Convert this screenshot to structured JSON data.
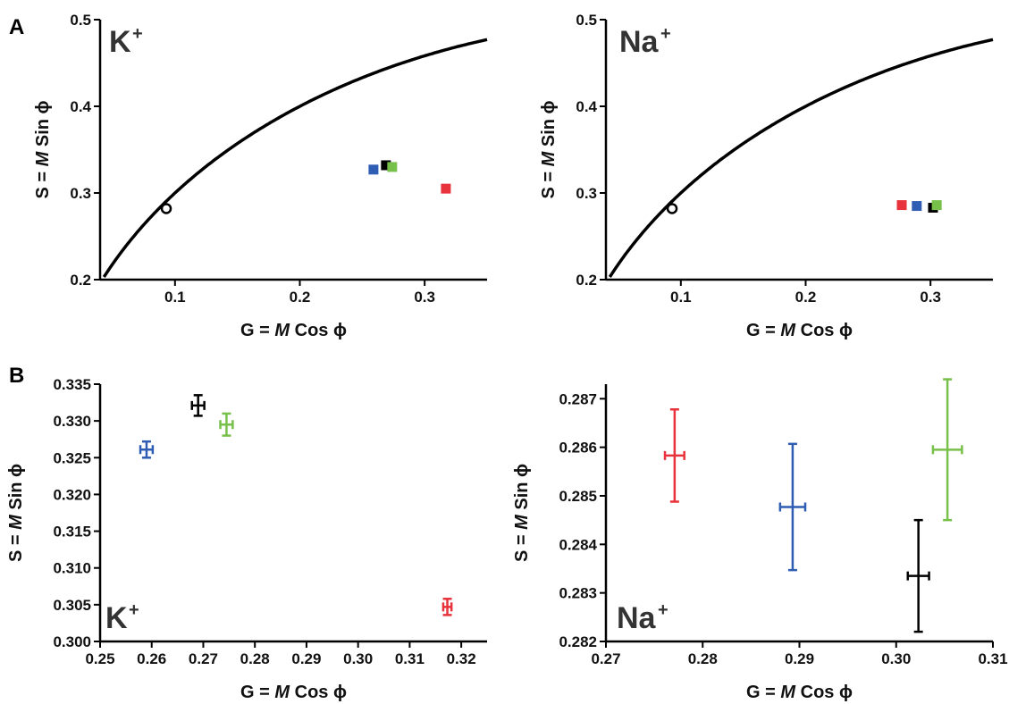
{
  "panel_labels": {
    "a": "A",
    "b": "B"
  },
  "series_colors": {
    "red": "#e8323c",
    "blue": "#2f5db4",
    "black": "#000000",
    "green": "#77c04a"
  },
  "chart_data": [
    {
      "id": "A-K",
      "type": "scatter",
      "ion_label": "K",
      "ion_sup": "+",
      "xlabel": "G = M Cos ϕ",
      "ylabel": "S = M Sin ϕ",
      "xlim": [
        0.04,
        0.35
      ],
      "ylim": [
        0.2,
        0.5
      ],
      "xticks": [
        "0.1",
        "0.2",
        "0.3"
      ],
      "yticks": [
        "0.2",
        "0.3",
        "0.4",
        "0.5"
      ],
      "semicircle": true,
      "reference_point": {
        "x": 0.093,
        "y": 0.282
      },
      "points": [
        {
          "color": "blue",
          "x": 0.259,
          "y": 0.327
        },
        {
          "color": "black",
          "x": 0.269,
          "y": 0.332
        },
        {
          "color": "green",
          "x": 0.274,
          "y": 0.33
        },
        {
          "color": "red",
          "x": 0.317,
          "y": 0.305
        }
      ]
    },
    {
      "id": "A-Na",
      "type": "scatter",
      "ion_label": "Na",
      "ion_sup": "+",
      "xlabel": "G = M Cos ϕ",
      "ylabel": "S = M Sin ϕ",
      "xlim": [
        0.04,
        0.35
      ],
      "ylim": [
        0.2,
        0.5
      ],
      "xticks": [
        "0.1",
        "0.2",
        "0.3"
      ],
      "yticks": [
        "0.2",
        "0.3",
        "0.4",
        "0.5"
      ],
      "semicircle": true,
      "reference_point": {
        "x": 0.093,
        "y": 0.282
      },
      "points": [
        {
          "color": "red",
          "x": 0.277,
          "y": 0.286
        },
        {
          "color": "blue",
          "x": 0.289,
          "y": 0.285
        },
        {
          "color": "black",
          "x": 0.302,
          "y": 0.283
        },
        {
          "color": "green",
          "x": 0.305,
          "y": 0.286
        }
      ]
    },
    {
      "id": "B-K",
      "type": "scatter",
      "ion_label": "K",
      "ion_sup": "+",
      "xlabel": "G = M Cos ϕ",
      "ylabel": "S = M Sin ϕ",
      "xlim": [
        0.25,
        0.325
      ],
      "ylim": [
        0.3,
        0.335
      ],
      "xticks": [
        "0.25",
        "0.26",
        "0.27",
        "0.28",
        "0.29",
        "0.30",
        "0.31",
        "0.32"
      ],
      "yticks": [
        "0.300",
        "0.305",
        "0.310",
        "0.315",
        "0.320",
        "0.325",
        "0.330",
        "0.335"
      ],
      "points": [
        {
          "color": "blue",
          "x": 0.259,
          "y": 0.3261,
          "xerr": 0.0012,
          "yerr": 0.0011
        },
        {
          "color": "black",
          "x": 0.269,
          "y": 0.3321,
          "xerr": 0.0012,
          "yerr": 0.0014
        },
        {
          "color": "green",
          "x": 0.2745,
          "y": 0.3295,
          "xerr": 0.0012,
          "yerr": 0.0015
        },
        {
          "color": "red",
          "x": 0.3173,
          "y": 0.3047,
          "xerr": 0.0008,
          "yerr": 0.0011
        }
      ]
    },
    {
      "id": "B-Na",
      "type": "scatter",
      "ion_label": "Na",
      "ion_sup": "+",
      "xlabel": "G = M Cos ϕ",
      "ylabel": "S = M Sin ϕ",
      "xlim": [
        0.27,
        0.31
      ],
      "ylim": [
        0.282,
        0.2873
      ],
      "xticks": [
        "0.27",
        "0.28",
        "0.29",
        "0.30",
        "0.31"
      ],
      "yticks": [
        "0.282",
        "0.283",
        "0.284",
        "0.285",
        "0.286",
        "0.287"
      ],
      "points": [
        {
          "color": "red",
          "x": 0.2771,
          "y": 0.28583,
          "xerr": 0.001,
          "yerr": 0.00095
        },
        {
          "color": "blue",
          "x": 0.2893,
          "y": 0.28477,
          "xerr": 0.0013,
          "yerr": 0.0013
        },
        {
          "color": "black",
          "x": 0.3023,
          "y": 0.28335,
          "xerr": 0.0011,
          "yerr": 0.00115
        },
        {
          "color": "green",
          "x": 0.3053,
          "y": 0.28595,
          "xerr": 0.0015,
          "yerr": 0.00145
        }
      ]
    }
  ]
}
